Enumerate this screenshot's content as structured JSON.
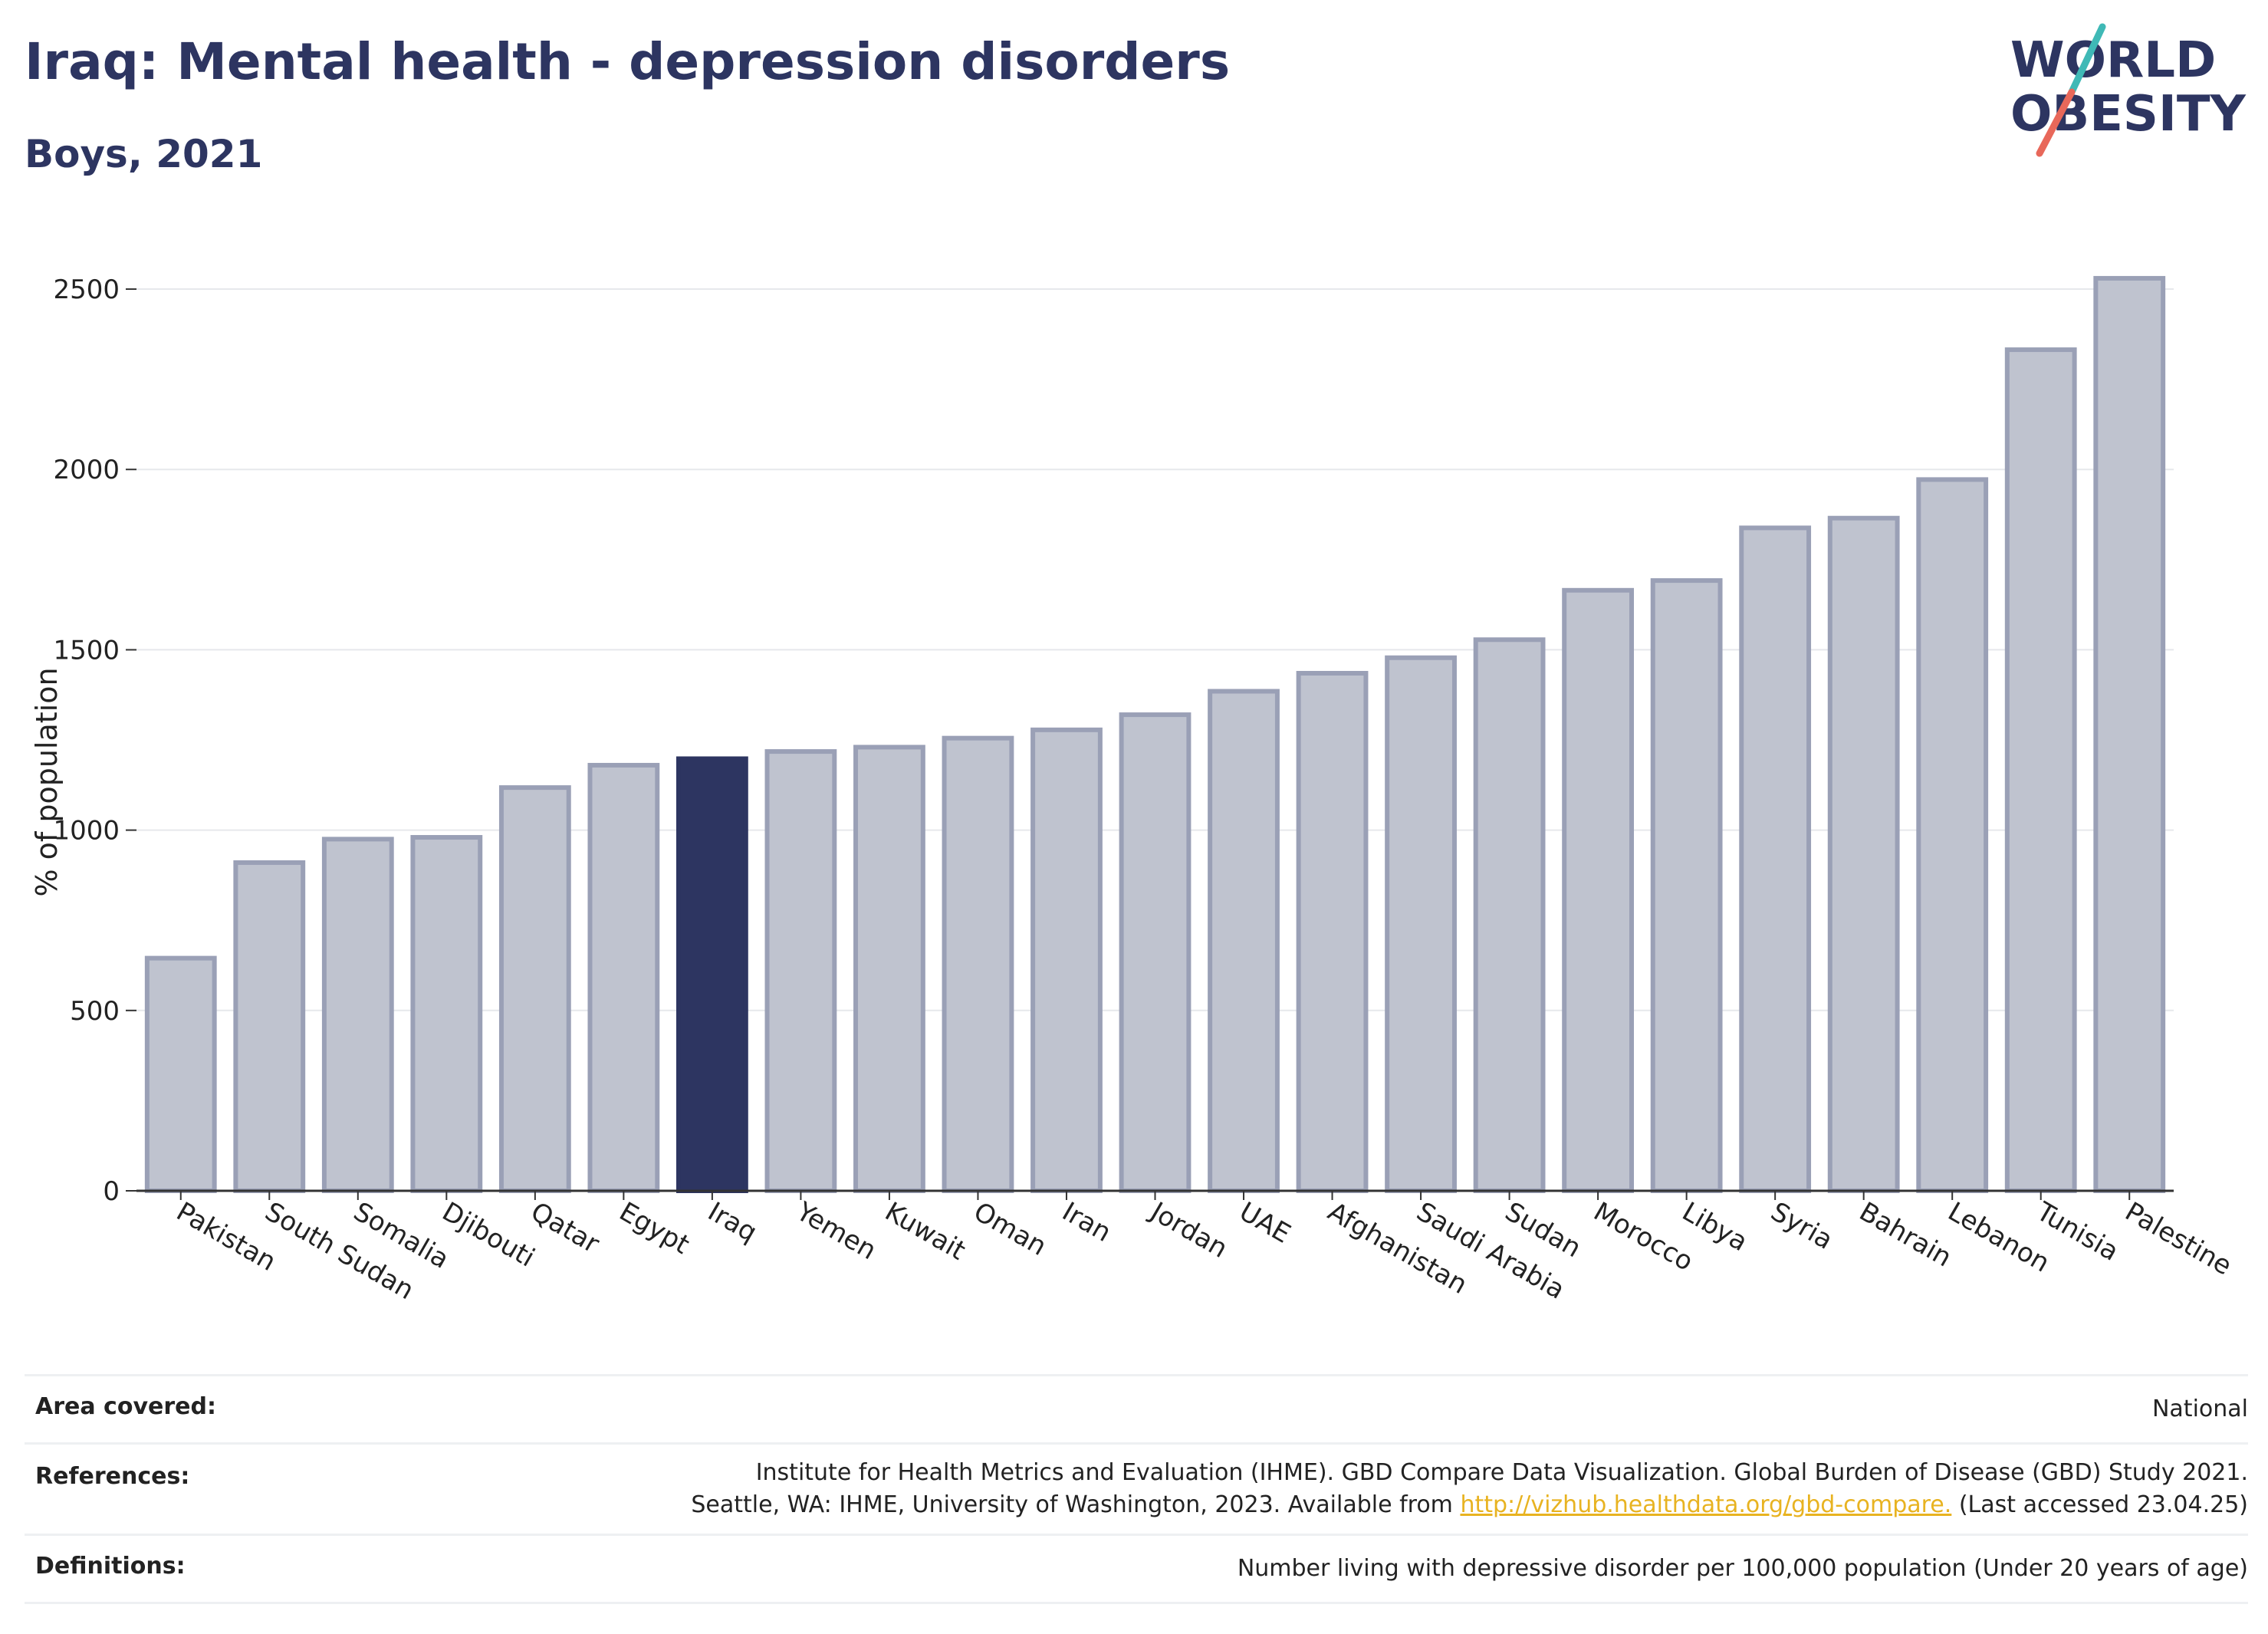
{
  "header": {
    "title": "Iraq: Mental health - depression disorders",
    "subtitle": "Boys, 2021"
  },
  "logo": {
    "line1": "WORLD",
    "line2": "OBESITY",
    "slash_colors": [
      "#3fb9b6",
      "#e8685a"
    ]
  },
  "colors": {
    "highlight": "#2d3561",
    "bar_fill": "#bfc3cf",
    "bar_stroke": "#9aa0b6",
    "link": "#e8b321"
  },
  "chart_data": {
    "type": "bar",
    "title": "Iraq: Mental health - depression disorders",
    "subtitle": "Boys, 2021",
    "ylabel": "% of population",
    "xlabel": "",
    "ylim": [
      0,
      2600
    ],
    "yticks": [
      0,
      500,
      1000,
      1500,
      2000,
      2500
    ],
    "grid": true,
    "highlight": "Iraq",
    "categories": [
      "Pakistan",
      "South Sudan",
      "Somalia",
      "Djibouti",
      "Qatar",
      "Egypt",
      "Iraq",
      "Yemen",
      "Kuwait",
      "Oman",
      "Iran",
      "Jordan",
      "UAE",
      "Afghanistan",
      "Saudi Arabia",
      "Sudan",
      "Morocco",
      "Libya",
      "Syria",
      "Bahrain",
      "Lebanon",
      "Tunisia",
      "Palestine"
    ],
    "values": [
      645,
      910,
      975,
      980,
      1118,
      1180,
      1198,
      1218,
      1230,
      1255,
      1278,
      1320,
      1385,
      1435,
      1478,
      1528,
      1665,
      1692,
      1838,
      1865,
      1972,
      2332,
      2530
    ]
  },
  "info": {
    "area_label": "Area covered:",
    "area_value": "National",
    "references_label": "References:",
    "references_line1": "Institute for Health Metrics and Evaluation (IHME). GBD Compare Data Visualization. Global Burden of Disease (GBD) Study 2021.",
    "references_line2_pre": "Seattle, WA: IHME, University of Washington, 2023. Available from ",
    "references_link": "http://vizhub.healthdata.org/gbd-compare.",
    "references_line2_post": " (Last accessed 23.04.25)",
    "definitions_label": "Definitions:",
    "definitions_value": "Number living with depressive disorder per 100,000 population (Under 20 years of age)"
  }
}
